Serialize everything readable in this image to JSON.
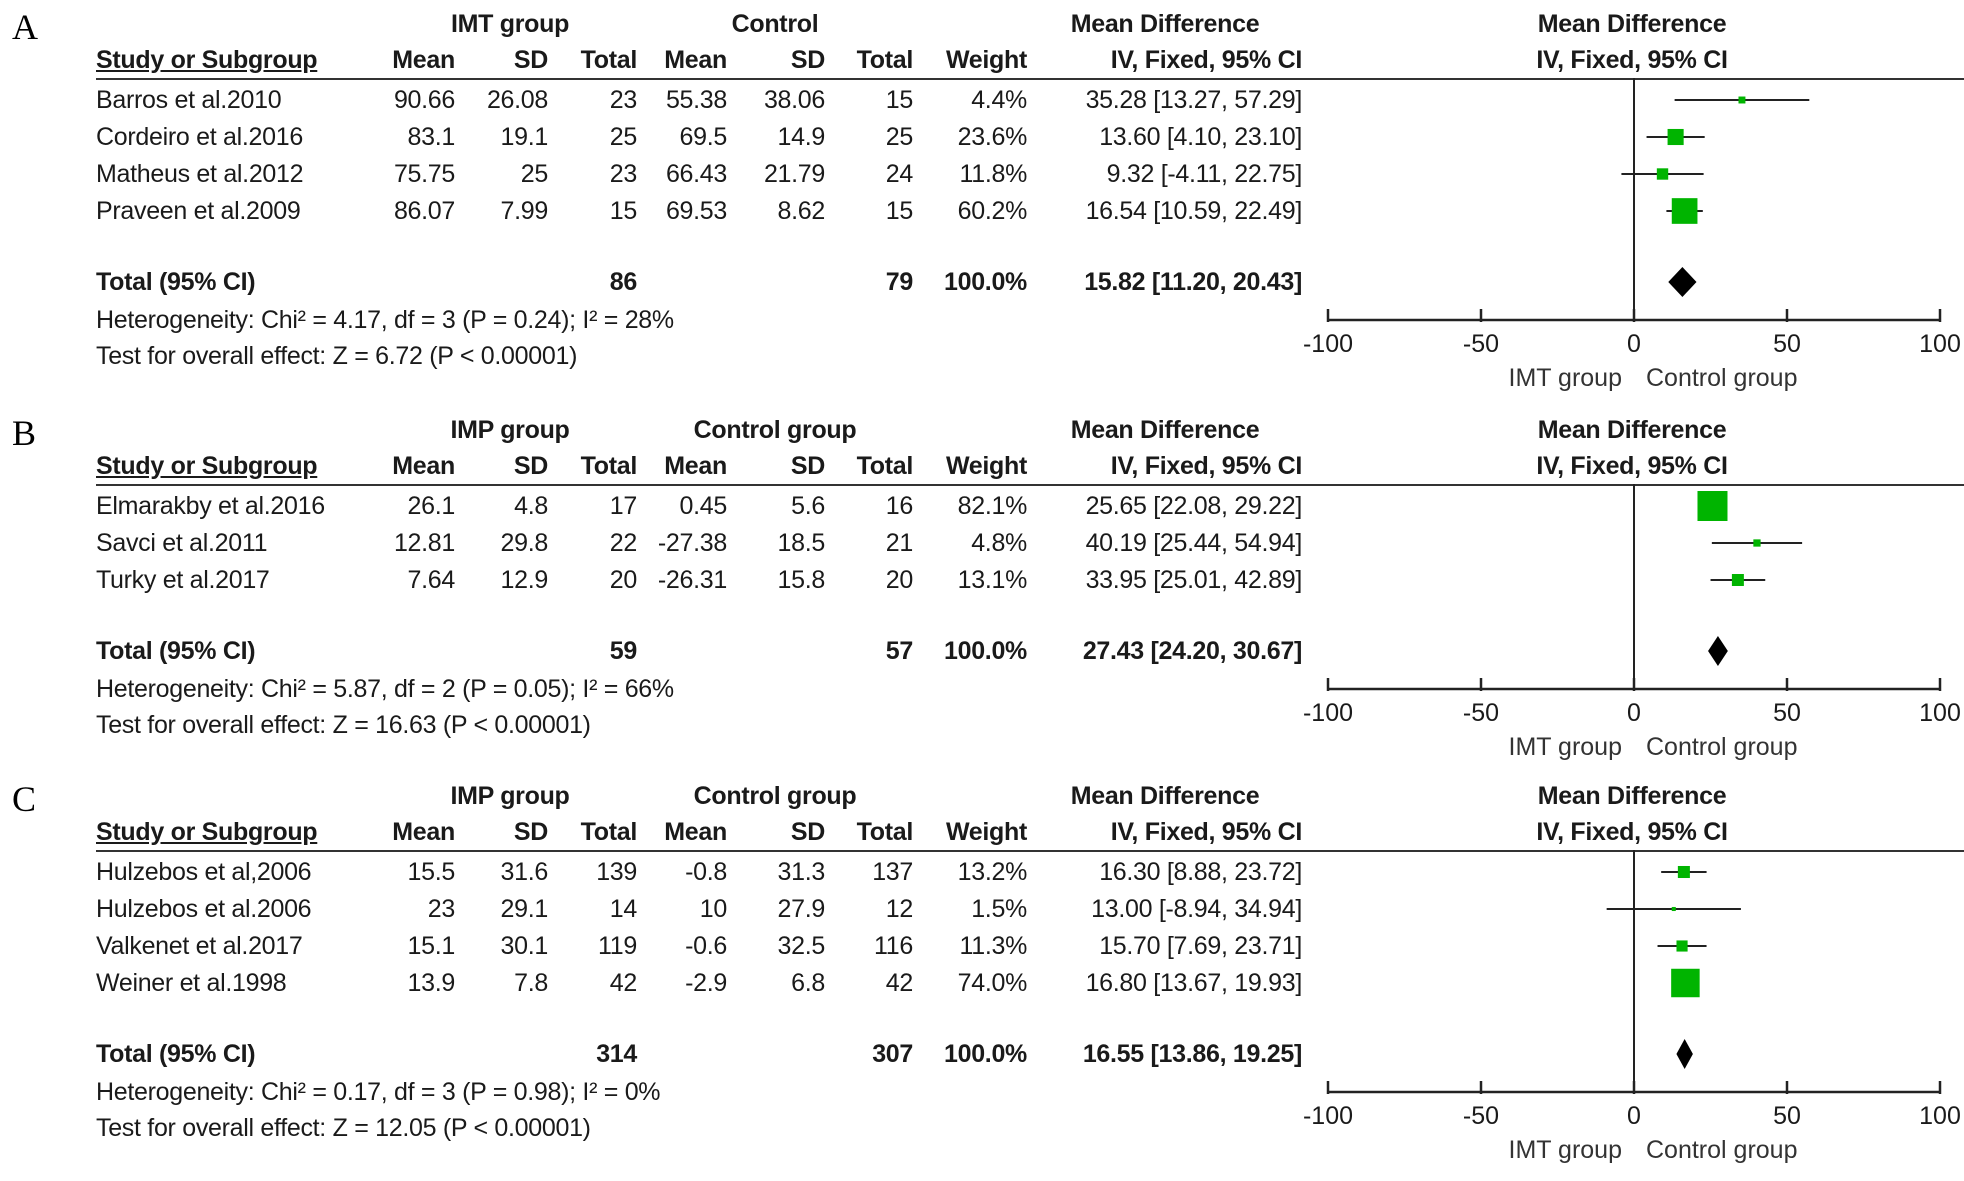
{
  "chart_data": [
    {
      "type": "forest",
      "panel": "A",
      "exp_group": "IMT group",
      "ctl_group": "Control",
      "effect_title": "Mean Difference",
      "effect_subtitle": "IV, Fixed, 95% CI",
      "columns": [
        "Study or Subgroup",
        "Mean",
        "SD",
        "Total",
        "Mean",
        "SD",
        "Total",
        "Weight",
        "IV, Fixed, 95% CI"
      ],
      "studies": [
        {
          "name": "Barros et al.2010",
          "exp_mean": "90.66",
          "exp_sd": "26.08",
          "exp_total": "23",
          "ctl_mean": "55.38",
          "ctl_sd": "38.06",
          "ctl_total": "15",
          "weight": "4.4%",
          "ci_text": "35.28 [13.27, 57.29]",
          "md": 35.28,
          "lo": 13.27,
          "hi": 57.29,
          "w": 4.4
        },
        {
          "name": "Cordeiro et al.2016",
          "exp_mean": "83.1",
          "exp_sd": "19.1",
          "exp_total": "25",
          "ctl_mean": "69.5",
          "ctl_sd": "14.9",
          "ctl_total": "25",
          "weight": "23.6%",
          "ci_text": "13.60 [4.10, 23.10]",
          "md": 13.6,
          "lo": 4.1,
          "hi": 23.1,
          "w": 23.6
        },
        {
          "name": "Matheus et al.2012",
          "exp_mean": "75.75",
          "exp_sd": "25",
          "exp_total": "23",
          "ctl_mean": "66.43",
          "ctl_sd": "21.79",
          "ctl_total": "24",
          "weight": "11.8%",
          "ci_text": "9.32 [-4.11, 22.75]",
          "md": 9.32,
          "lo": -4.11,
          "hi": 22.75,
          "w": 11.8
        },
        {
          "name": "Praveen et al.2009",
          "exp_mean": "86.07",
          "exp_sd": "7.99",
          "exp_total": "15",
          "ctl_mean": "69.53",
          "ctl_sd": "8.62",
          "ctl_total": "15",
          "weight": "60.2%",
          "ci_text": "16.54 [10.59, 22.49]",
          "md": 16.54,
          "lo": 10.59,
          "hi": 22.49,
          "w": 60.2
        }
      ],
      "total": {
        "label": "Total (95% CI)",
        "exp_total": "86",
        "ctl_total": "79",
        "weight": "100.0%",
        "ci_text": "15.82 [11.20, 20.43]",
        "md": 15.82,
        "lo": 11.2,
        "hi": 20.43
      },
      "heterogeneity": "Heterogeneity: Chi² = 4.17, df = 3 (P = 0.24); I² = 28%",
      "overall_effect": "Test for overall effect: Z = 6.72 (P < 0.00001)",
      "xlim": [
        -100,
        100
      ],
      "xticks": [
        -100,
        -50,
        0,
        50,
        100
      ],
      "xlabel_left": "IMT group",
      "xlabel_right": "Control group"
    },
    {
      "type": "forest",
      "panel": "B",
      "exp_group": "IMP group",
      "ctl_group": "Control group",
      "effect_title": "Mean Difference",
      "effect_subtitle": "IV, Fixed, 95% CI",
      "columns": [
        "Study or Subgroup",
        "Mean",
        "SD",
        "Total",
        "Mean",
        "SD",
        "Total",
        "Weight",
        "IV, Fixed, 95% CI"
      ],
      "studies": [
        {
          "name": "Elmarakby et al.2016",
          "exp_mean": "26.1",
          "exp_sd": "4.8",
          "exp_total": "17",
          "ctl_mean": "0.45",
          "ctl_sd": "5.6",
          "ctl_total": "16",
          "weight": "82.1%",
          "ci_text": "25.65 [22.08, 29.22]",
          "md": 25.65,
          "lo": 22.08,
          "hi": 29.22,
          "w": 82.1
        },
        {
          "name": "Savci  et al.2011",
          "exp_mean": "12.81",
          "exp_sd": "29.8",
          "exp_total": "22",
          "ctl_mean": "-27.38",
          "ctl_sd": "18.5",
          "ctl_total": "21",
          "weight": "4.8%",
          "ci_text": "40.19 [25.44, 54.94]",
          "md": 40.19,
          "lo": 25.44,
          "hi": 54.94,
          "w": 4.8
        },
        {
          "name": "Turky et al.2017",
          "exp_mean": "7.64",
          "exp_sd": "12.9",
          "exp_total": "20",
          "ctl_mean": "-26.31",
          "ctl_sd": "15.8",
          "ctl_total": "20",
          "weight": "13.1%",
          "ci_text": "33.95 [25.01, 42.89]",
          "md": 33.95,
          "lo": 25.01,
          "hi": 42.89,
          "w": 13.1
        }
      ],
      "total": {
        "label": "Total (95% CI)",
        "exp_total": "59",
        "ctl_total": "57",
        "weight": "100.0%",
        "ci_text": "27.43 [24.20, 30.67]",
        "md": 27.43,
        "lo": 24.2,
        "hi": 30.67
      },
      "heterogeneity": "Heterogeneity: Chi² = 5.87, df = 2 (P = 0.05); I² = 66%",
      "overall_effect": "Test for overall effect: Z = 16.63 (P < 0.00001)",
      "xlim": [
        -100,
        100
      ],
      "xticks": [
        -100,
        -50,
        0,
        50,
        100
      ],
      "xlabel_left": "IMT group",
      "xlabel_right": "Control group"
    },
    {
      "type": "forest",
      "panel": "C",
      "exp_group": "IMP group",
      "ctl_group": "Control group",
      "effect_title": "Mean Difference",
      "effect_subtitle": "IV, Fixed, 95% CI",
      "columns": [
        "Study or Subgroup",
        "Mean",
        "SD",
        "Total",
        "Mean",
        "SD",
        "Total",
        "Weight",
        "IV, Fixed, 95% CI"
      ],
      "studies": [
        {
          "name": "Hulzebos et al,2006",
          "exp_mean": "15.5",
          "exp_sd": "31.6",
          "exp_total": "139",
          "ctl_mean": "-0.8",
          "ctl_sd": "31.3",
          "ctl_total": "137",
          "weight": "13.2%",
          "ci_text": "16.30 [8.88, 23.72]",
          "md": 16.3,
          "lo": 8.88,
          "hi": 23.72,
          "w": 13.2
        },
        {
          "name": "Hulzebos et al.2006",
          "exp_mean": "23",
          "exp_sd": "29.1",
          "exp_total": "14",
          "ctl_mean": "10",
          "ctl_sd": "27.9",
          "ctl_total": "12",
          "weight": "1.5%",
          "ci_text": "13.00 [-8.94, 34.94]",
          "md": 13.0,
          "lo": -8.94,
          "hi": 34.94,
          "w": 1.5
        },
        {
          "name": "Valkenet et al.2017",
          "exp_mean": "15.1",
          "exp_sd": "30.1",
          "exp_total": "119",
          "ctl_mean": "-0.6",
          "ctl_sd": "32.5",
          "ctl_total": "116",
          "weight": "11.3%",
          "ci_text": "15.70 [7.69, 23.71]",
          "md": 15.7,
          "lo": 7.69,
          "hi": 23.71,
          "w": 11.3
        },
        {
          "name": "Weiner et al.1998",
          "exp_mean": "13.9",
          "exp_sd": "7.8",
          "exp_total": "42",
          "ctl_mean": "-2.9",
          "ctl_sd": "6.8",
          "ctl_total": "42",
          "weight": "74.0%",
          "ci_text": "16.80 [13.67, 19.93]",
          "md": 16.8,
          "lo": 13.67,
          "hi": 19.93,
          "w": 74.0
        }
      ],
      "total": {
        "label": "Total (95% CI)",
        "exp_total": "314",
        "ctl_total": "307",
        "weight": "100.0%",
        "ci_text": "16.55 [13.86, 19.25]",
        "md": 16.55,
        "lo": 13.86,
        "hi": 19.25
      },
      "heterogeneity": "Heterogeneity: Chi² = 0.17, df = 3 (P = 0.98); I² = 0%",
      "overall_effect": "Test for overall effect: Z = 12.05 (P < 0.00001)",
      "xlim": [
        -100,
        100
      ],
      "xticks": [
        -100,
        -50,
        0,
        50,
        100
      ],
      "xlabel_left": "IMT group",
      "xlabel_right": "Control group"
    }
  ],
  "colors": {
    "study_marker": "#00b400",
    "diamond": "#000000",
    "lines": "#1a1a1a"
  }
}
